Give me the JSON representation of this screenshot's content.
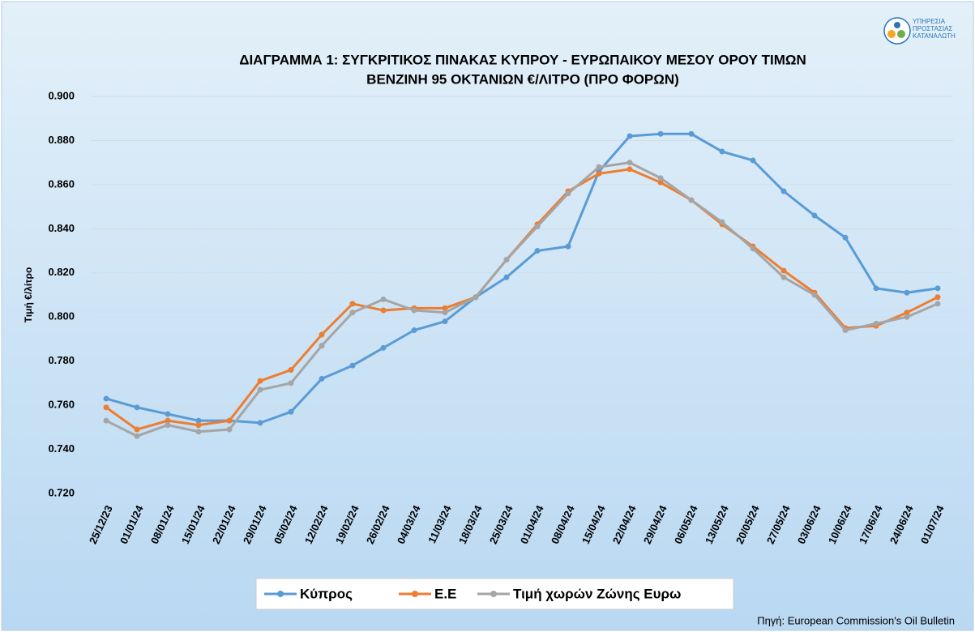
{
  "chart_data": {
    "type": "line",
    "title": [
      "ΔΙΑΓΡΑΜΜΑ 1: ΣΥΓΚΡΙΤΙΚΟΣ ΠΙΝΑΚΑΣ ΚΥΠΡΟΥ - ΕΥΡΩΠΑΙΚΟΥ ΜΕΣΟΥ ΟΡΟΥ ΤΙΜΩΝ",
      "ΒΕΝΖΙΝΗ 95 ΟΚΤΑΝΙΩΝ €/ΛΙΤΡΟ (ΠΡΟ ΦΟΡΩΝ)"
    ],
    "y_label": "Τιμή €/λίτρο",
    "source": "Πηγή: European Commission's Oil Bulletin",
    "logo": [
      "ΥΠΗΡΕΣΙΑ",
      "ΠΡΟΣΤΑΣΙΑΣ",
      "ΚΑΤΑΝΑΛΩΤΗ"
    ],
    "categories": [
      "25/12/23",
      "01/01/24",
      "08/01/24",
      "15/01/24",
      "22/01/24",
      "29/01/24",
      "05/02/24",
      "12/02/24",
      "19/02/24",
      "26/02/24",
      "04/03/24",
      "11/03/24",
      "18/03/24",
      "25/03/24",
      "01/04/24",
      "08/04/24",
      "15/04/24",
      "22/04/24",
      "29/04/24",
      "06/05/24",
      "13/05/24",
      "20/05/24",
      "27/05/24",
      "03/06/24",
      "10/06/24",
      "17/06/24",
      "24/06/24",
      "01/07/24"
    ],
    "series": [
      {
        "name": "Κύπρος",
        "color": "#5b9bd5",
        "values": [
          0.763,
          0.759,
          0.756,
          0.753,
          0.753,
          0.752,
          0.757,
          0.772,
          0.778,
          0.786,
          0.794,
          0.798,
          0.809,
          0.818,
          0.83,
          0.832,
          0.866,
          0.882,
          0.883,
          0.883,
          0.875,
          0.871,
          0.857,
          0.846,
          0.836,
          0.813,
          0.811,
          0.813
        ]
      },
      {
        "name": "Ε.Ε",
        "color": "#ed7d31",
        "values": [
          0.759,
          0.749,
          0.753,
          0.751,
          0.753,
          0.771,
          0.776,
          0.792,
          0.806,
          0.803,
          0.804,
          0.804,
          0.809,
          0.826,
          0.842,
          0.857,
          0.865,
          0.867,
          0.861,
          0.853,
          0.842,
          0.832,
          0.821,
          0.811,
          0.795,
          0.796,
          0.802,
          0.809
        ]
      },
      {
        "name": "Τιμή χωρών Ζώνης Ευρω",
        "color": "#a5a5a5",
        "values": [
          0.753,
          0.746,
          0.751,
          0.748,
          0.749,
          0.767,
          0.77,
          0.787,
          0.802,
          0.808,
          0.803,
          0.802,
          0.809,
          0.826,
          0.841,
          0.856,
          0.868,
          0.87,
          0.863,
          0.853,
          0.843,
          0.831,
          0.818,
          0.81,
          0.794,
          0.797,
          0.8,
          0.806
        ]
      }
    ],
    "ylim": [
      0.72,
      0.9
    ],
    "yticks": [
      {
        "value": 0.72,
        "label": "0.720"
      },
      {
        "value": 0.74,
        "label": "0.740"
      },
      {
        "value": 0.76,
        "label": "0.760"
      },
      {
        "value": 0.78,
        "label": "0.780"
      },
      {
        "value": 0.8,
        "label": "0.800"
      },
      {
        "value": 0.82,
        "label": "0.820"
      },
      {
        "value": 0.84,
        "label": "0.840"
      },
      {
        "value": 0.86,
        "label": "0.860"
      },
      {
        "value": 0.88,
        "label": "0.880"
      },
      {
        "value": 0.9,
        "label": "0.900"
      }
    ],
    "grid": true,
    "legend": "bottom"
  }
}
